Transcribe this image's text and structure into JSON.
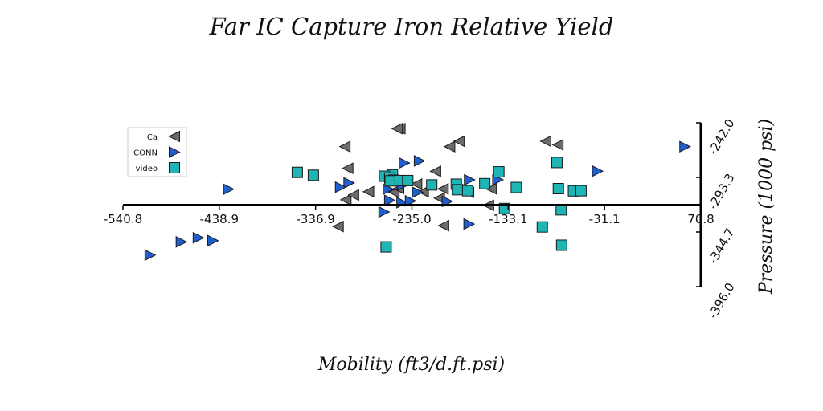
{
  "chart_data": {
    "type": "scatter",
    "title": "Far IC Capture Iron Relative Yield",
    "xlabel": "Mobility (ft3/d.ft.psi)",
    "ylabel": "Pressure (1000 psi)",
    "xlim": [
      -540.8,
      70.8
    ],
    "ylim": [
      -396.0,
      -242.0
    ],
    "xticks": [
      "-540.8",
      "-438.9",
      "-336.9",
      "-235.0",
      "-133.1",
      "-31.1",
      "70.8"
    ],
    "yticks": [
      "-242.0",
      "-293.3",
      "-344.7",
      "-396.0"
    ],
    "x_axis_at_y": -293.3,
    "legend_position": "upper-left",
    "series": [
      {
        "name": "Ca",
        "marker": "triangle-left",
        "color": "#6b6b6b",
        "points": [
          [
            -247.7,
            -247.5
          ],
          [
            -250.6,
            -247.5
          ],
          [
            -185.0,
            -259.3
          ],
          [
            -305.9,
            -264.4
          ],
          [
            -195.1,
            -264.4
          ],
          [
            -93.4,
            -259.3
          ],
          [
            -80.5,
            -262.7
          ],
          [
            -302.9,
            -284.8
          ],
          [
            -210.0,
            -287.6
          ],
          [
            -202.0,
            -304.1
          ],
          [
            -230.0,
            -299.6
          ],
          [
            -304.9,
            -314.4
          ],
          [
            -296.8,
            -309.9
          ],
          [
            -280.9,
            -306.8
          ],
          [
            -254.0,
            -307.3
          ],
          [
            -223.0,
            -306.8
          ],
          [
            -249.0,
            -303.8
          ],
          [
            -206.0,
            -312.8
          ],
          [
            -175.0,
            -307.3
          ],
          [
            -151.0,
            -304.1
          ],
          [
            -153.9,
            -319.6
          ],
          [
            -313.1,
            -339.5
          ],
          [
            -201.5,
            -338.7
          ]
        ]
      },
      {
        "name": "CONN",
        "marker": "triangle-right",
        "color": "#1f5fcf",
        "points": [
          [
            -38.5,
            -287.4
          ],
          [
            54.0,
            -264.4
          ],
          [
            -227.0,
            -277.8
          ],
          [
            -243.0,
            -279.8
          ],
          [
            -144.0,
            -295.6
          ],
          [
            -174.0,
            -295.6
          ],
          [
            -301.5,
            -298.5
          ],
          [
            -245.0,
            -300.7
          ],
          [
            -310.5,
            -302.5
          ],
          [
            -260.0,
            -304.4
          ],
          [
            -229.0,
            -307.3
          ],
          [
            -258.5,
            -314.9
          ],
          [
            -245.5,
            -317.1
          ],
          [
            -236.5,
            -315.5
          ],
          [
            -197.5,
            -315.9
          ],
          [
            -264.5,
            -325.8
          ],
          [
            -174.5,
            -337.2
          ],
          [
            -429.0,
            -304.4
          ],
          [
            -512.0,
            -366.4
          ],
          [
            -479.0,
            -354.0
          ],
          [
            -461.0,
            -350.1
          ],
          [
            -445.5,
            -352.8
          ]
        ]
      },
      {
        "name": "video",
        "marker": "square",
        "color": "#1fb5b5",
        "points": [
          [
            -356.3,
            -288.6
          ],
          [
            -339.3,
            -291.3
          ],
          [
            -255.6,
            -290.9
          ],
          [
            -264.0,
            -292.2
          ],
          [
            -258.5,
            -293.9
          ],
          [
            -254.0,
            -295.9
          ],
          [
            -258.0,
            -296.6
          ],
          [
            -247.4,
            -296.3
          ],
          [
            -239.4,
            -296.3
          ],
          [
            -214.0,
            -300.4
          ],
          [
            -188.0,
            -299.7
          ],
          [
            -157.9,
            -299.2
          ],
          [
            -186.4,
            -304.9
          ],
          [
            -176.0,
            -305.9
          ],
          [
            -143.0,
            -288.1
          ],
          [
            -124.5,
            -302.8
          ],
          [
            -81.5,
            -279.3
          ],
          [
            -80.0,
            -303.9
          ],
          [
            -64.0,
            -306.0
          ],
          [
            -56.0,
            -305.9
          ],
          [
            -137.0,
            -322.6
          ],
          [
            -97.0,
            -339.9
          ],
          [
            -77.0,
            -323.8
          ],
          [
            -76.5,
            -357.1
          ],
          [
            -262.3,
            -358.7
          ]
        ]
      }
    ]
  }
}
